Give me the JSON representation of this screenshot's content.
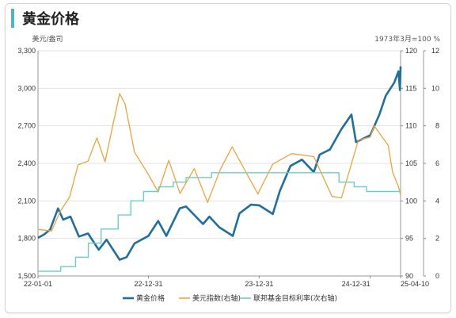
{
  "title": "黄金价格",
  "chart_data": {
    "type": "line",
    "left_unit": "美元/盎司",
    "right_unit": "1973年3月=100 %",
    "x_ticks": [
      "22-01-01",
      "22-12-31",
      "23-12-31",
      "24-12-31",
      "25-04-10"
    ],
    "x_range": [
      "2022-01-01",
      "2025-04-10"
    ],
    "y_left": {
      "min": 1500,
      "max": 3300,
      "ticks": [
        "1,500",
        "1,800",
        "2,100",
        "2,400",
        "2,700",
        "3,000",
        "3,300"
      ]
    },
    "y_right1": {
      "min": 90,
      "max": 120,
      "ticks": [
        "90",
        "95",
        "100",
        "105",
        "110",
        "115",
        "120"
      ]
    },
    "y_right2": {
      "min": 0,
      "max": 12,
      "ticks": [
        "0",
        "2",
        "4",
        "6",
        "8",
        "10",
        "12"
      ]
    },
    "series": [
      {
        "name": "黄金价格",
        "axis": "left",
        "color": "#1f6f9f",
        "points": [
          [
            "2022-01-01",
            1805
          ],
          [
            "2022-01-20",
            1830
          ],
          [
            "2022-02-10",
            1870
          ],
          [
            "2022-03-08",
            2040
          ],
          [
            "2022-03-25",
            1950
          ],
          [
            "2022-04-18",
            1975
          ],
          [
            "2022-05-16",
            1815
          ],
          [
            "2022-06-15",
            1840
          ],
          [
            "2022-07-20",
            1710
          ],
          [
            "2022-08-15",
            1790
          ],
          [
            "2022-09-27",
            1630
          ],
          [
            "2022-10-20",
            1650
          ],
          [
            "2022-11-15",
            1760
          ],
          [
            "2022-12-31",
            1820
          ],
          [
            "2023-02-01",
            1940
          ],
          [
            "2023-02-28",
            1820
          ],
          [
            "2023-04-13",
            2040
          ],
          [
            "2023-05-04",
            2055
          ],
          [
            "2023-06-29",
            1915
          ],
          [
            "2023-07-20",
            1975
          ],
          [
            "2023-08-21",
            1890
          ],
          [
            "2023-10-05",
            1820
          ],
          [
            "2023-10-27",
            2000
          ],
          [
            "2023-12-04",
            2070
          ],
          [
            "2023-12-31",
            2065
          ],
          [
            "2024-02-14",
            1995
          ],
          [
            "2024-03-08",
            2180
          ],
          [
            "2024-04-12",
            2380
          ],
          [
            "2024-05-20",
            2430
          ],
          [
            "2024-06-28",
            2330
          ],
          [
            "2024-07-17",
            2470
          ],
          [
            "2024-08-20",
            2510
          ],
          [
            "2024-09-26",
            2670
          ],
          [
            "2024-10-30",
            2790
          ],
          [
            "2024-11-14",
            2570
          ],
          [
            "2024-12-31",
            2625
          ],
          [
            "2025-01-30",
            2790
          ],
          [
            "2025-02-20",
            2940
          ],
          [
            "2025-03-20",
            3045
          ],
          [
            "2025-04-03",
            3135
          ],
          [
            "2025-04-08",
            2985
          ],
          [
            "2025-04-10",
            3175
          ]
        ]
      },
      {
        "name": "美元指数(右轴)",
        "axis": "right1",
        "color": "#f0a33a",
        "points": [
          [
            "2022-01-01",
            96.2
          ],
          [
            "2022-02-15",
            96.0
          ],
          [
            "2022-03-15",
            98.6
          ],
          [
            "2022-04-15",
            100.5
          ],
          [
            "2022-05-13",
            104.8
          ],
          [
            "2022-06-15",
            105.3
          ],
          [
            "2022-07-14",
            108.4
          ],
          [
            "2022-08-10",
            105.2
          ],
          [
            "2022-09-27",
            114.3
          ],
          [
            "2022-10-15",
            112.9
          ],
          [
            "2022-11-15",
            106.5
          ],
          [
            "2022-12-31",
            103.5
          ],
          [
            "2023-02-01",
            101.2
          ],
          [
            "2023-03-08",
            105.4
          ],
          [
            "2023-04-14",
            101.0
          ],
          [
            "2023-05-31",
            104.3
          ],
          [
            "2023-07-14",
            99.8
          ],
          [
            "2023-08-25",
            104.2
          ],
          [
            "2023-10-03",
            107.2
          ],
          [
            "2023-11-15",
            104.0
          ],
          [
            "2023-12-27",
            100.9
          ],
          [
            "2023-12-31",
            101.3
          ],
          [
            "2024-02-14",
            104.9
          ],
          [
            "2024-04-16",
            106.3
          ],
          [
            "2024-06-28",
            105.9
          ],
          [
            "2024-08-27",
            100.6
          ],
          [
            "2024-09-27",
            100.4
          ],
          [
            "2024-11-22",
            108.1
          ],
          [
            "2024-12-31",
            108.5
          ],
          [
            "2025-01-13",
            110.0
          ],
          [
            "2025-02-28",
            107.4
          ],
          [
            "2025-03-15",
            103.8
          ],
          [
            "2025-04-03",
            101.9
          ],
          [
            "2025-04-10",
            100.8
          ]
        ]
      },
      {
        "name": "联邦基金目标利率(次右轴)",
        "axis": "right2",
        "color": "#6ccfc6",
        "step": true,
        "points": [
          [
            "2022-01-01",
            0.25
          ],
          [
            "2022-03-17",
            0.5
          ],
          [
            "2022-05-05",
            1.0
          ],
          [
            "2022-06-16",
            1.75
          ],
          [
            "2022-07-28",
            2.5
          ],
          [
            "2022-09-22",
            3.25
          ],
          [
            "2022-11-03",
            4.0
          ],
          [
            "2022-12-15",
            4.5
          ],
          [
            "2023-02-02",
            4.75
          ],
          [
            "2023-03-23",
            5.0
          ],
          [
            "2023-05-04",
            5.25
          ],
          [
            "2023-07-27",
            5.5
          ],
          [
            "2024-09-19",
            5.0
          ],
          [
            "2024-11-08",
            4.75
          ],
          [
            "2024-12-19",
            4.5
          ],
          [
            "2025-04-10",
            4.5
          ]
        ]
      }
    ],
    "legend": [
      "黄金价格",
      "美元指数(右轴)",
      "联邦基金目标利率(次右轴)"
    ],
    "legend_position": "bottom"
  }
}
